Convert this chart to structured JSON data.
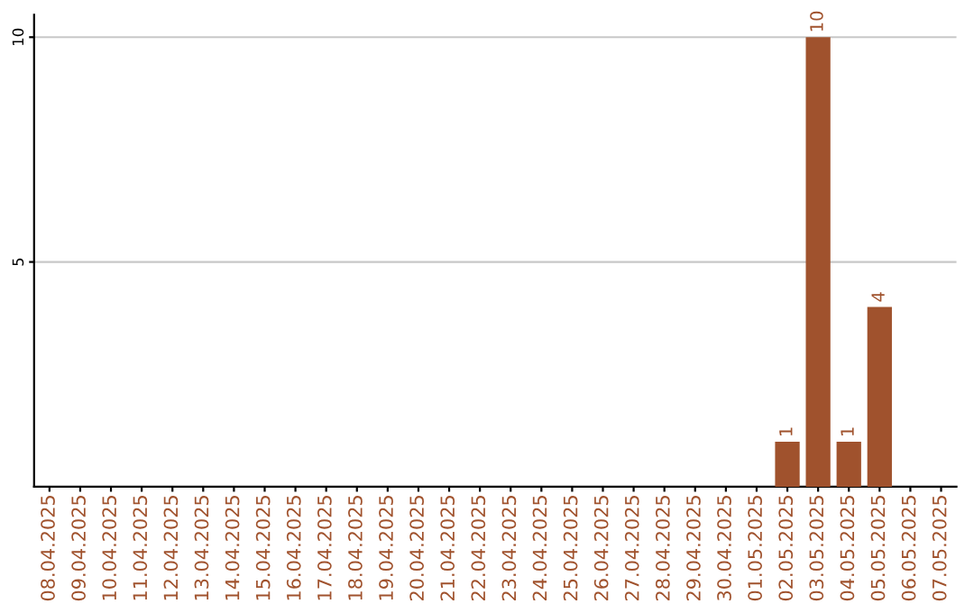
{
  "chart_data": {
    "type": "bar",
    "categories": [
      "08.04.2025",
      "09.04.2025",
      "10.04.2025",
      "11.04.2025",
      "12.04.2025",
      "13.04.2025",
      "14.04.2025",
      "15.04.2025",
      "16.04.2025",
      "17.04.2025",
      "18.04.2025",
      "19.04.2025",
      "20.04.2025",
      "21.04.2025",
      "22.04.2025",
      "23.04.2025",
      "24.04.2025",
      "25.04.2025",
      "26.04.2025",
      "27.04.2025",
      "28.04.2025",
      "29.04.2025",
      "30.04.2025",
      "01.05.2025",
      "02.05.2025",
      "03.05.2025",
      "04.05.2025",
      "05.05.2025",
      "06.05.2025",
      "07.05.2025"
    ],
    "values": [
      0,
      0,
      0,
      0,
      0,
      0,
      0,
      0,
      0,
      0,
      0,
      0,
      0,
      0,
      0,
      0,
      0,
      0,
      0,
      0,
      0,
      0,
      0,
      0,
      1,
      10,
      1,
      4,
      0,
      0
    ],
    "value_labels": [
      null,
      null,
      null,
      null,
      null,
      null,
      null,
      null,
      null,
      null,
      null,
      null,
      null,
      null,
      null,
      null,
      null,
      null,
      null,
      null,
      null,
      null,
      null,
      null,
      "1",
      "10",
      "1",
      "4",
      null,
      null
    ],
    "color": "#a0522d",
    "ylim": [
      0,
      10.5
    ],
    "yticks": [
      5,
      10
    ],
    "grid": "y"
  }
}
